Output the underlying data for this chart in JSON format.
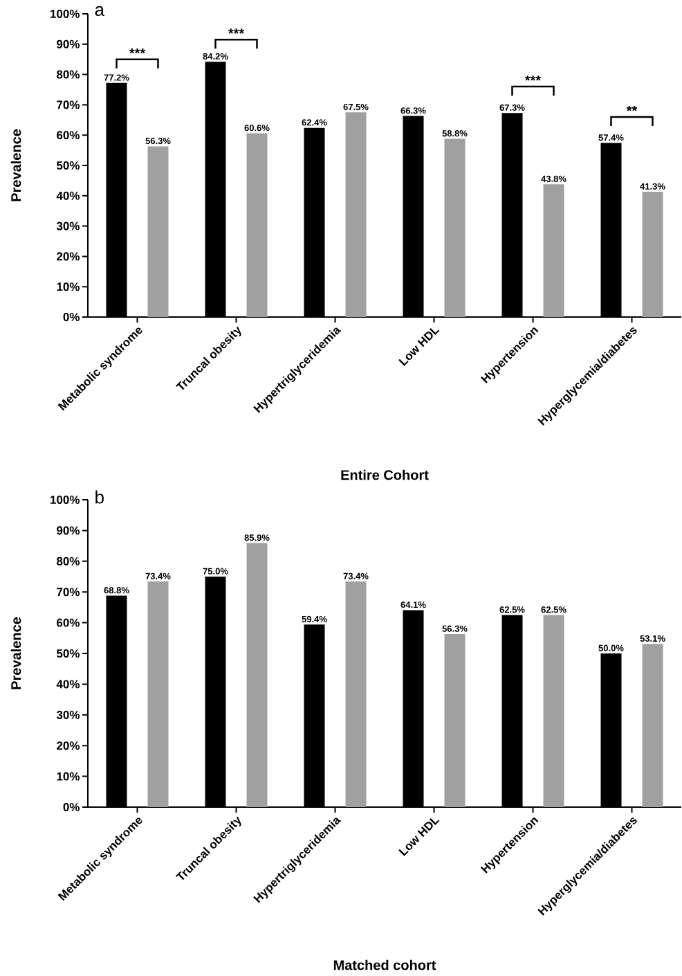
{
  "chart_data": [
    {
      "type": "bar",
      "title": "a",
      "xlabel": "Entire Cohort",
      "ylabel": "Prevalence",
      "categories": [
        "Metabolic syndrome",
        "Truncal obesity",
        "Hypertriglyceridemia",
        "Low HDL",
        "Hypertension",
        "Hyperglycemia/diabetes"
      ],
      "series": [
        {
          "color": "#000000",
          "values": [
            77.2,
            84.2,
            62.4,
            66.3,
            67.3,
            57.4
          ],
          "value_labels": [
            "77.2%",
            "84.2%",
            "62.4%",
            "66.3%",
            "67.3%",
            "57.4%"
          ]
        },
        {
          "color": "#a0a0a0",
          "values": [
            56.3,
            60.6,
            67.5,
            58.8,
            43.8,
            41.3
          ],
          "value_labels": [
            "56.3%",
            "60.6%",
            "67.5%",
            "58.8%",
            "43.8%",
            "41.3%"
          ]
        }
      ],
      "ylim": [
        0,
        100
      ],
      "yticks": [
        {
          "value": 0,
          "label": "0%"
        },
        {
          "value": 10,
          "label": "10%"
        },
        {
          "value": 20,
          "label": "20%"
        },
        {
          "value": 30,
          "label": "30%"
        },
        {
          "value": 40,
          "label": "40%"
        },
        {
          "value": 50,
          "label": "50%"
        },
        {
          "value": 60,
          "label": "60%"
        },
        {
          "value": 70,
          "label": "70%"
        },
        {
          "value": 80,
          "label": "80%"
        },
        {
          "value": 90,
          "label": "90%"
        },
        {
          "value": 100,
          "label": "100%"
        }
      ],
      "annotations": [
        "***",
        "***",
        "***",
        "**"
      ]
    },
    {
      "type": "bar",
      "title": "b",
      "xlabel": "Matched  cohort",
      "ylabel": "Prevalence",
      "categories": [
        "Metabolic syndrome",
        "Truncal obesity",
        "Hypertriglyceridemia",
        "Low HDL",
        "Hypertension",
        "Hyperglycemia/diabetes"
      ],
      "series": [
        {
          "color": "#000000",
          "values": [
            68.8,
            75.0,
            59.4,
            64.1,
            62.5,
            50.0
          ],
          "value_labels": [
            "68.8%",
            "75.0%",
            "59.4%",
            "64.1%",
            "62.5%",
            "50.0%"
          ]
        },
        {
          "color": "#a0a0a0",
          "values": [
            73.4,
            85.9,
            73.4,
            56.3,
            62.5,
            53.1
          ],
          "value_labels": [
            "73.4%",
            "85.9%",
            "73.4%",
            "56.3%",
            "62.5%",
            "53.1%"
          ]
        }
      ],
      "ylim": [
        0,
        100
      ],
      "yticks": [
        {
          "value": 0,
          "label": "0%"
        },
        {
          "value": 10,
          "label": "10%"
        },
        {
          "value": 20,
          "label": "20%"
        },
        {
          "value": 30,
          "label": "30%"
        },
        {
          "value": 40,
          "label": "40%"
        },
        {
          "value": 50,
          "label": "50%"
        },
        {
          "value": 60,
          "label": "60%"
        },
        {
          "value": 70,
          "label": "70%"
        },
        {
          "value": 80,
          "label": "80%"
        },
        {
          "value": 90,
          "label": "90%"
        },
        {
          "value": 100,
          "label": "100%"
        }
      ]
    }
  ]
}
